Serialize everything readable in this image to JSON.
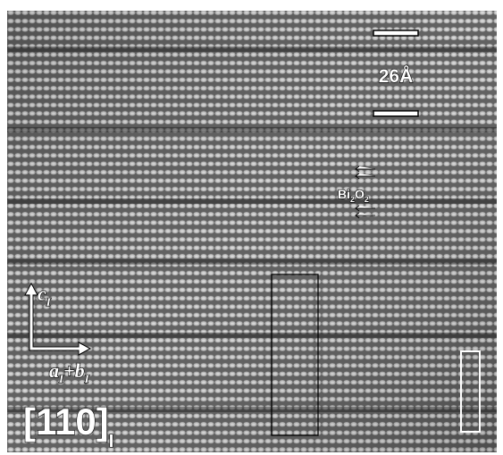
{
  "scale_bar": {
    "label": "26Å"
  },
  "layer_label": {
    "element1": "Bi",
    "sub1": "2",
    "element2": "O",
    "sub2": "2"
  },
  "axes": {
    "vertical": {
      "label": "c",
      "subscript": "I"
    },
    "horizontal": {
      "label1": "a",
      "subscript1": "I",
      "label2": "+b",
      "subscript2": "I"
    }
  },
  "zone_axis": {
    "label": "[110]",
    "subscript": "I"
  }
}
